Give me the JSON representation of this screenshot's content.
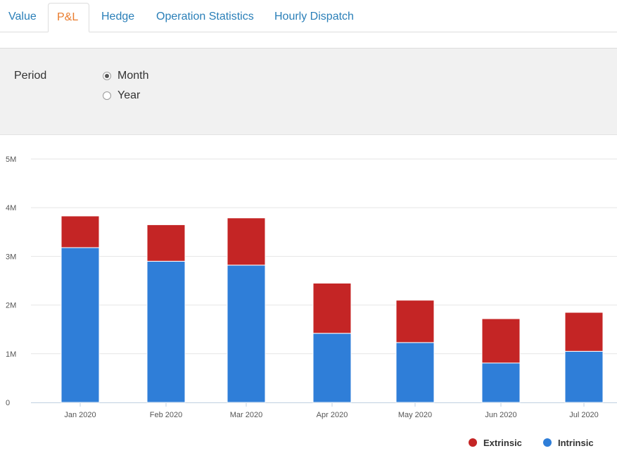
{
  "tabs": [
    {
      "label": "Value",
      "active": false
    },
    {
      "label": "P&L",
      "active": true
    },
    {
      "label": "Hedge",
      "active": false
    },
    {
      "label": "Operation Statistics",
      "active": false
    },
    {
      "label": "Hourly Dispatch",
      "active": false
    }
  ],
  "filters": {
    "period_label": "Period",
    "options": [
      {
        "label": "Month",
        "checked": true
      },
      {
        "label": "Year",
        "checked": false
      }
    ]
  },
  "chart_data": {
    "type": "bar",
    "stacked": true,
    "categories": [
      "Jan 2020",
      "Feb 2020",
      "Mar 2020",
      "Apr 2020",
      "May 2020",
      "Jun 2020",
      "Jul 2020"
    ],
    "series": [
      {
        "name": "Intrinsic",
        "color": "#2f7ed8",
        "values": [
          3.18,
          2.9,
          2.82,
          1.42,
          1.23,
          0.81,
          1.05
        ]
      },
      {
        "name": "Extrinsic",
        "color": "#c42525",
        "values": [
          0.65,
          0.75,
          0.97,
          1.03,
          0.87,
          0.91,
          0.8
        ]
      }
    ],
    "unit": "M",
    "yticks": [
      "0",
      "1M",
      "2M",
      "3M",
      "4M",
      "5M"
    ],
    "ylim": [
      0,
      5
    ],
    "grid": true,
    "legend_position": "bottom-right",
    "title": "",
    "xlabel": "",
    "ylabel": ""
  }
}
